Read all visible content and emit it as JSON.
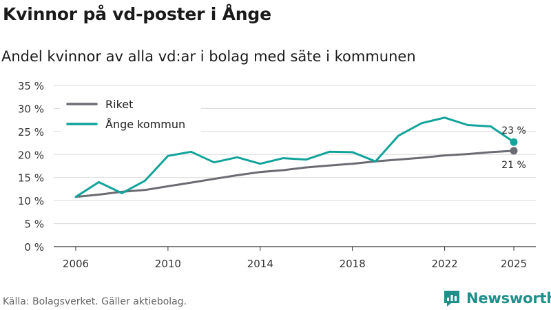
{
  "title": "Kvinnor på vd-poster i Ånge",
  "subtitle": "Andel kvinnor av alla vd:ar i bolag med säte i kommunen",
  "source": "Källa: Bolagsverket. Gäller aktiebolag.",
  "brand": {
    "name": "Newsworthy",
    "color": "#1f8f8a"
  },
  "chart_data": {
    "type": "line",
    "x": [
      2006,
      2007,
      2008,
      2009,
      2010,
      2011,
      2012,
      2013,
      2014,
      2015,
      2016,
      2017,
      2018,
      2019,
      2020,
      2021,
      2022,
      2023,
      2024,
      2025
    ],
    "xticks": [
      2006,
      2010,
      2014,
      2018,
      2022,
      2025
    ],
    "xtick_labels": [
      "2006",
      "2010",
      "2014",
      "2018",
      "2022",
      "2025"
    ],
    "ylim": [
      0,
      35
    ],
    "yticks": [
      0,
      5,
      10,
      15,
      20,
      25,
      30,
      35
    ],
    "ytick_labels": [
      "0 %",
      "5 %",
      "10 %",
      "15 %",
      "20 %",
      "25 %",
      "30 %",
      "35 %"
    ],
    "grid": true,
    "legend_position": "top-left",
    "series": [
      {
        "name": "Riket",
        "color": "#6b6b73",
        "values": [
          10.8,
          11.3,
          11.9,
          12.3,
          13.1,
          13.9,
          14.7,
          15.5,
          16.2,
          16.6,
          17.2,
          17.6,
          18.0,
          18.5,
          18.9,
          19.3,
          19.8,
          20.1,
          20.5,
          20.8
        ],
        "end_label": "21 %"
      },
      {
        "name": "Ånge kommun",
        "color": "#12a39a",
        "values": [
          10.8,
          14.0,
          11.6,
          14.3,
          19.7,
          20.6,
          18.3,
          19.4,
          18.0,
          19.2,
          18.9,
          20.6,
          20.5,
          18.5,
          24.1,
          26.8,
          28.0,
          26.4,
          26.1,
          22.7
        ],
        "end_label": "23 %"
      }
    ]
  }
}
